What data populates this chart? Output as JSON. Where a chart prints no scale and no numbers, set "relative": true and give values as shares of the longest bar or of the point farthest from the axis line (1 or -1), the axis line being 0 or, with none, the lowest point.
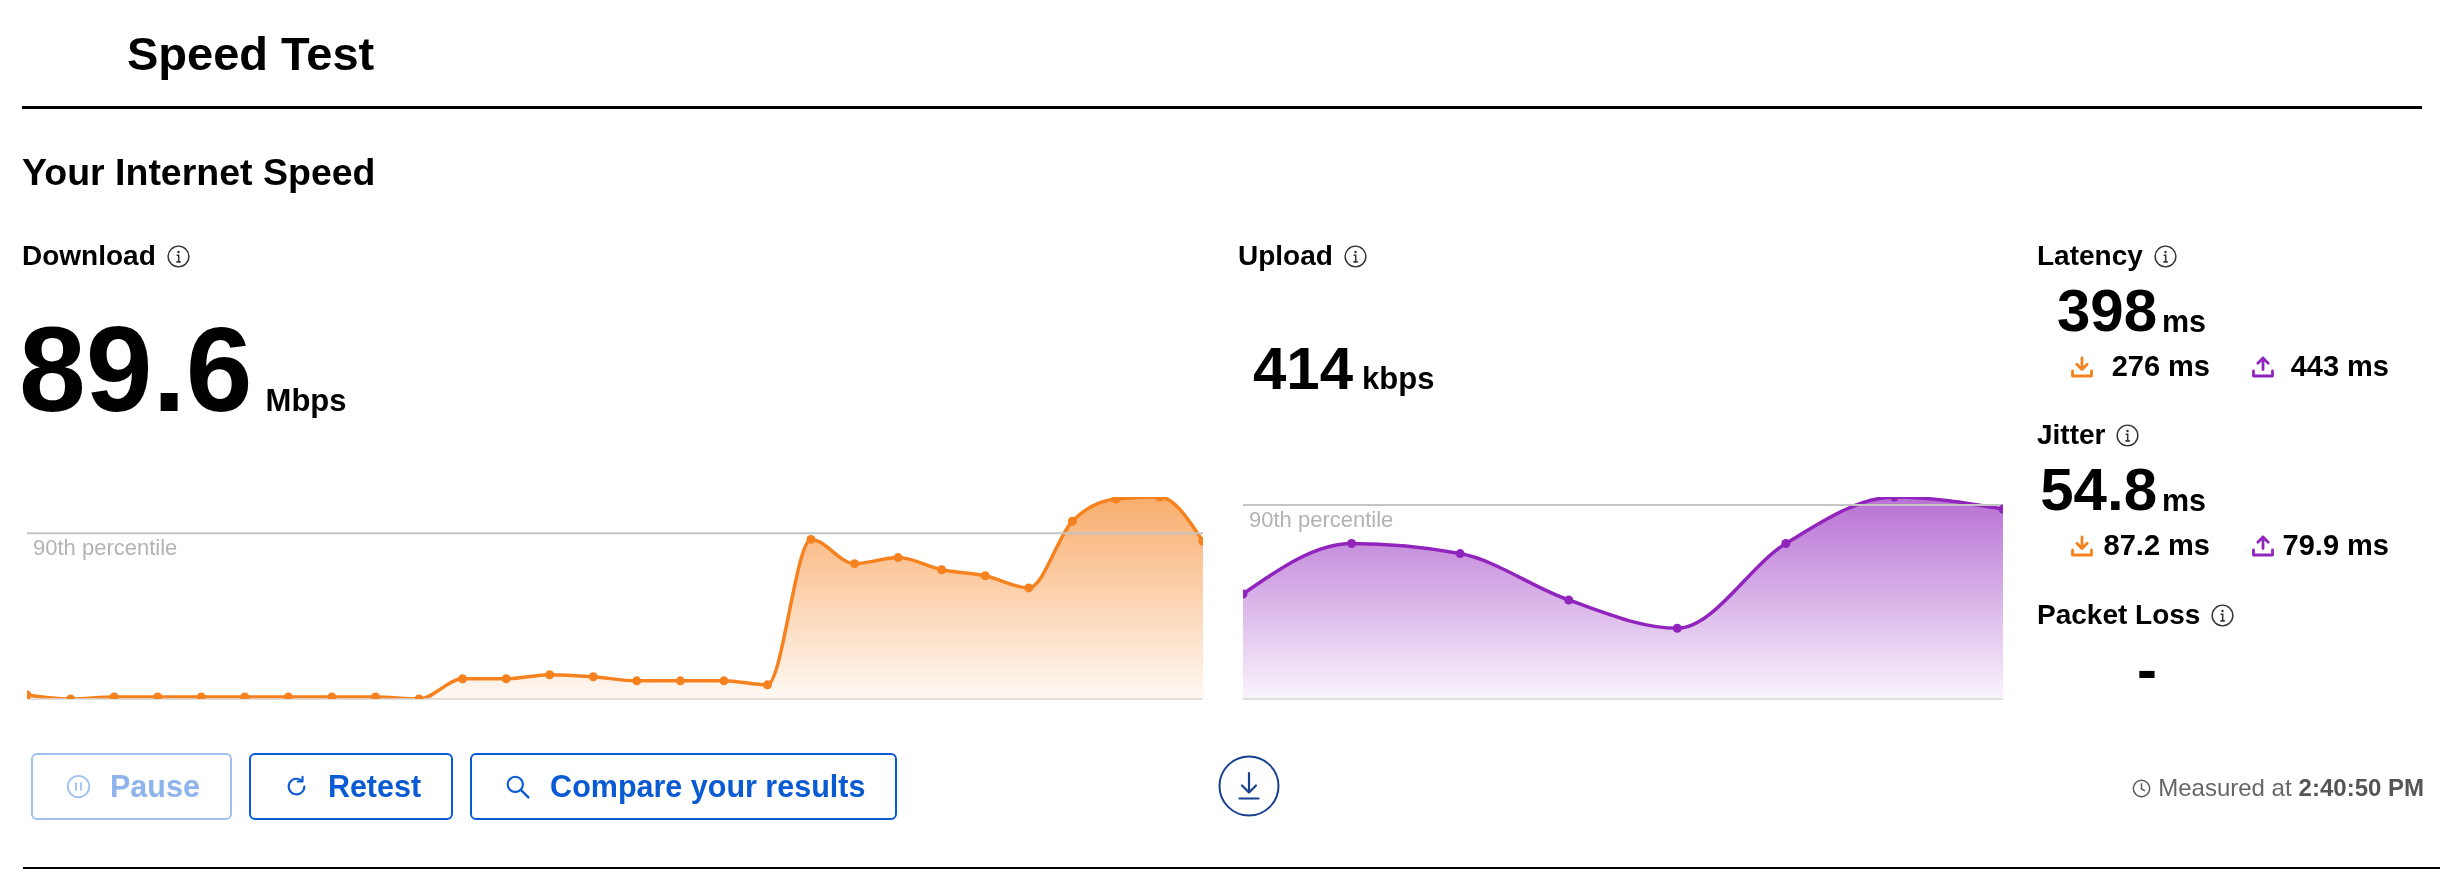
{
  "chart_data": [
    {
      "type": "other",
      "title": "Speed Test",
      "subtitle": "Your Internet Speed"
    },
    {
      "type": "area",
      "title": "Download",
      "annotations": [
        "89.6",
        "Mbps"
      ],
      "relative": true,
      "color": "#f6821f",
      "marker": "circle",
      "line_style": "solid",
      "categories": [
        null,
        null,
        null,
        null,
        null,
        null,
        null,
        null,
        null,
        null,
        null,
        null,
        null,
        null,
        null,
        null,
        null,
        null,
        null,
        null,
        null,
        null,
        null,
        null,
        null,
        null,
        null,
        null
      ],
      "values": [
        0.02,
        0,
        0.01,
        0.01,
        0.01,
        0.01,
        0.01,
        0.01,
        0.01,
        0,
        0.1,
        0.1,
        0.12,
        0.11,
        0.09,
        0.09,
        0.09,
        0.07,
        0.79,
        0.67,
        0.7,
        0.64,
        0.61,
        0.55,
        0.88,
        0.99,
        1,
        0.78
      ],
      "ref_lines": [
        {
          "axis": "y",
          "value": 0.82,
          "label": "90th percentile"
        }
      ]
    },
    {
      "type": "area",
      "title": "Upload",
      "annotations": [
        "414",
        "kbps"
      ],
      "relative": true,
      "color": "#9124bd",
      "marker": "circle",
      "line_style": "solid",
      "categories": [
        null,
        null,
        null,
        null,
        null,
        null,
        null,
        null
      ],
      "values": [
        0.52,
        0.77,
        0.72,
        0.49,
        0.35,
        0.77,
        1,
        0.94
      ],
      "ref_lines": [
        {
          "axis": "y",
          "value": 0.96,
          "label": "90th percentile"
        }
      ]
    },
    {
      "type": "other",
      "title": "Latency",
      "annotations": [
        "398",
        "ms",
        "276 ms",
        "443 ms"
      ]
    },
    {
      "type": "other",
      "title": "Jitter",
      "annotations": [
        "54.8",
        "ms",
        "87.2 ms",
        "79.9 ms"
      ]
    },
    {
      "type": "other",
      "title": "Packet Loss",
      "annotations": [
        "-"
      ]
    },
    {
      "type": "other",
      "annotations": [
        "Pause",
        "Retest",
        "Compare your results",
        "Measured at",
        "2:40:50 PM"
      ]
    }
  ]
}
